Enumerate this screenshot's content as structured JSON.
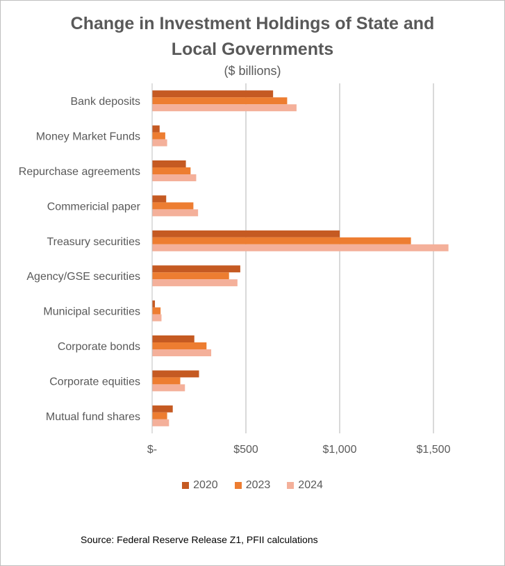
{
  "chart_data": {
    "type": "bar",
    "orientation": "horizontal",
    "title_lines": [
      "Change in Investment Holdings of State and",
      "Local Governments"
    ],
    "subtitle": "($ billions)",
    "categories": [
      "Bank deposits",
      "Money Market Funds",
      "Repurchase agreements",
      "Commericial paper",
      "Treasury securities",
      "Agency/GSE securities",
      "Municipal securities",
      "Corporate bonds",
      "Corporate equities",
      "Mutual fund shares"
    ],
    "series": [
      {
        "name": "2020",
        "color": "#c55a22",
        "values": [
          645,
          40,
          180,
          75,
          1000,
          470,
          15,
          225,
          250,
          110
        ]
      },
      {
        "name": "2023",
        "color": "#ed7d31",
        "values": [
          720,
          70,
          205,
          220,
          1380,
          410,
          45,
          290,
          150,
          80
        ]
      },
      {
        "name": "2024",
        "color": "#f4b09a",
        "values": [
          770,
          80,
          235,
          245,
          1580,
          455,
          50,
          315,
          175,
          90
        ]
      }
    ],
    "xlim": [
      0,
      1600
    ],
    "xticks": [
      0,
      500,
      1000,
      1500
    ],
    "xtick_labels": [
      "$-",
      "$500",
      "$1,000",
      "$1,500"
    ],
    "grid": true,
    "legend_position": "bottom",
    "source": "Source:  Federal Reserve Release  Z1, PFII calculations"
  }
}
